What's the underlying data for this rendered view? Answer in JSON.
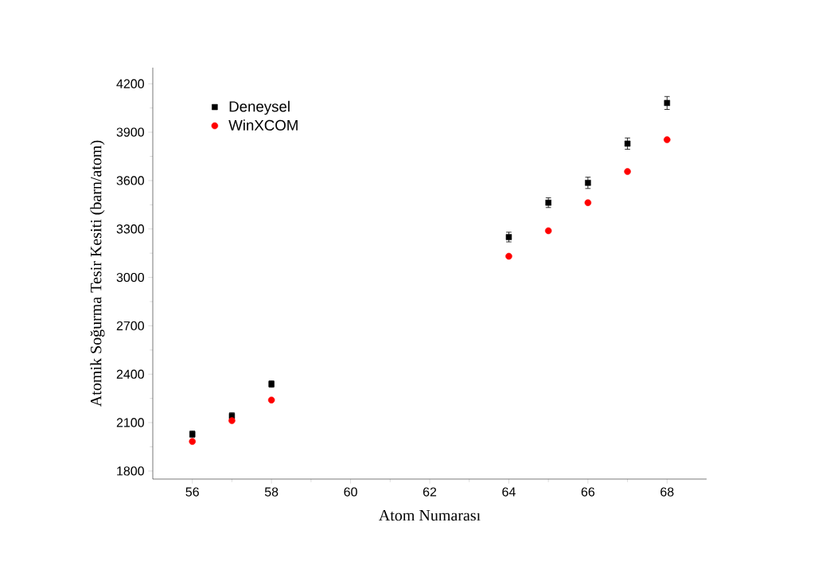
{
  "chart_data": {
    "type": "scatter",
    "xlabel": "Atom Numarası",
    "ylabel": "Atomik Soğurma Tesir Kesiti (barn/atom)",
    "xlim": [
      55,
      69
    ],
    "xticks": [
      56,
      58,
      60,
      62,
      64,
      66,
      68
    ],
    "ylim": [
      1750,
      4300
    ],
    "yticks": [
      1800,
      2100,
      2400,
      2700,
      3000,
      3300,
      3600,
      3900,
      4200
    ],
    "legend": "top left",
    "grid": false,
    "series": [
      {
        "name": "Deneysel",
        "color": "#000000",
        "marker": "square",
        "x": [
          56,
          57,
          58,
          64,
          65,
          66,
          67,
          68
        ],
        "values": [
          2028,
          2141,
          2339,
          3250,
          3463,
          3586,
          3829,
          4081
        ],
        "errors": [
          20,
          20,
          20,
          30,
          30,
          35,
          35,
          40
        ]
      },
      {
        "name": "WinXCOM",
        "color": "#ff0000",
        "marker": "circle",
        "x": [
          56,
          57,
          58,
          64,
          65,
          66,
          67,
          68
        ],
        "values": [
          1983,
          2112,
          2240,
          3131,
          3289,
          3463,
          3656,
          3853
        ]
      }
    ]
  }
}
